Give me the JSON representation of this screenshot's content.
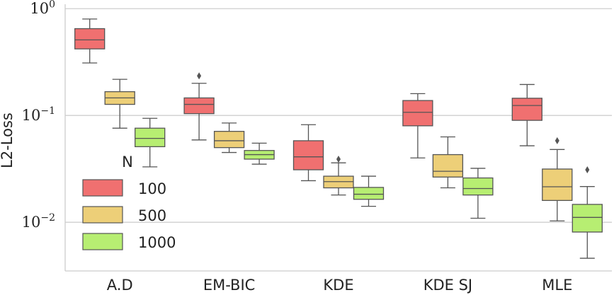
{
  "chart_data": {
    "type": "box",
    "title": "",
    "xlabel": "",
    "ylabel": "L2-Loss",
    "yscale": "log",
    "ylim": [
      0.0035,
      1.1
    ],
    "yticks": [
      {
        "value": 1,
        "base": "10",
        "exp": "0"
      },
      {
        "value": 0.1,
        "base": "10",
        "exp": "−1"
      },
      {
        "value": 0.01,
        "base": "10",
        "exp": "−2"
      }
    ],
    "grid": "horizontal",
    "categories": [
      "A.D",
      "EM-BIC",
      "KDE",
      "KDE SJ",
      "MLE"
    ],
    "legend": {
      "title": "N",
      "position": "center-left"
    },
    "series": [
      {
        "name": "100",
        "color": "#f07070",
        "boxes": [
          {
            "whislo": 0.31,
            "q1": 0.42,
            "med": 0.51,
            "q3": 0.65,
            "whishi": 0.8,
            "fliers": []
          },
          {
            "whislo": 0.059,
            "q1": 0.104,
            "med": 0.127,
            "q3": 0.146,
            "whishi": 0.2,
            "fliers": [
              0.235
            ]
          },
          {
            "whislo": 0.0245,
            "q1": 0.031,
            "med": 0.041,
            "q3": 0.058,
            "whishi": 0.082,
            "fliers": []
          },
          {
            "whislo": 0.04,
            "q1": 0.08,
            "med": 0.107,
            "q3": 0.138,
            "whishi": 0.16,
            "fliers": []
          },
          {
            "whislo": 0.052,
            "q1": 0.09,
            "med": 0.124,
            "q3": 0.145,
            "whishi": 0.195,
            "fliers": []
          }
        ]
      },
      {
        "name": "500",
        "color": "#edcf78",
        "boxes": [
          {
            "whislo": 0.076,
            "q1": 0.127,
            "med": 0.146,
            "q3": 0.167,
            "whishi": 0.218,
            "fliers": []
          },
          {
            "whislo": 0.045,
            "q1": 0.05,
            "med": 0.058,
            "q3": 0.071,
            "whishi": 0.085,
            "fliers": []
          },
          {
            "whislo": 0.018,
            "q1": 0.021,
            "med": 0.024,
            "q3": 0.027,
            "whishi": 0.036,
            "fliers": [
              0.039
            ]
          },
          {
            "whislo": 0.021,
            "q1": 0.0265,
            "med": 0.03,
            "q3": 0.043,
            "whishi": 0.063,
            "fliers": []
          },
          {
            "whislo": 0.0103,
            "q1": 0.016,
            "med": 0.0215,
            "q3": 0.0315,
            "whishi": 0.048,
            "fliers": [
              0.058
            ]
          }
        ]
      },
      {
        "name": "1000",
        "color": "#b7ee72",
        "boxes": [
          {
            "whislo": 0.033,
            "q1": 0.051,
            "med": 0.061,
            "q3": 0.076,
            "whishi": 0.094,
            "fliers": []
          },
          {
            "whislo": 0.035,
            "q1": 0.039,
            "med": 0.043,
            "q3": 0.047,
            "whishi": 0.055,
            "fliers": []
          },
          {
            "whislo": 0.0141,
            "q1": 0.0164,
            "med": 0.0183,
            "q3": 0.0212,
            "whishi": 0.027,
            "fliers": []
          },
          {
            "whislo": 0.0109,
            "q1": 0.018,
            "med": 0.0207,
            "q3": 0.026,
            "whishi": 0.032,
            "fliers": []
          },
          {
            "whislo": 0.0046,
            "q1": 0.0081,
            "med": 0.0111,
            "q3": 0.0147,
            "whishi": 0.0216,
            "fliers": [
              0.031
            ]
          }
        ]
      }
    ]
  }
}
